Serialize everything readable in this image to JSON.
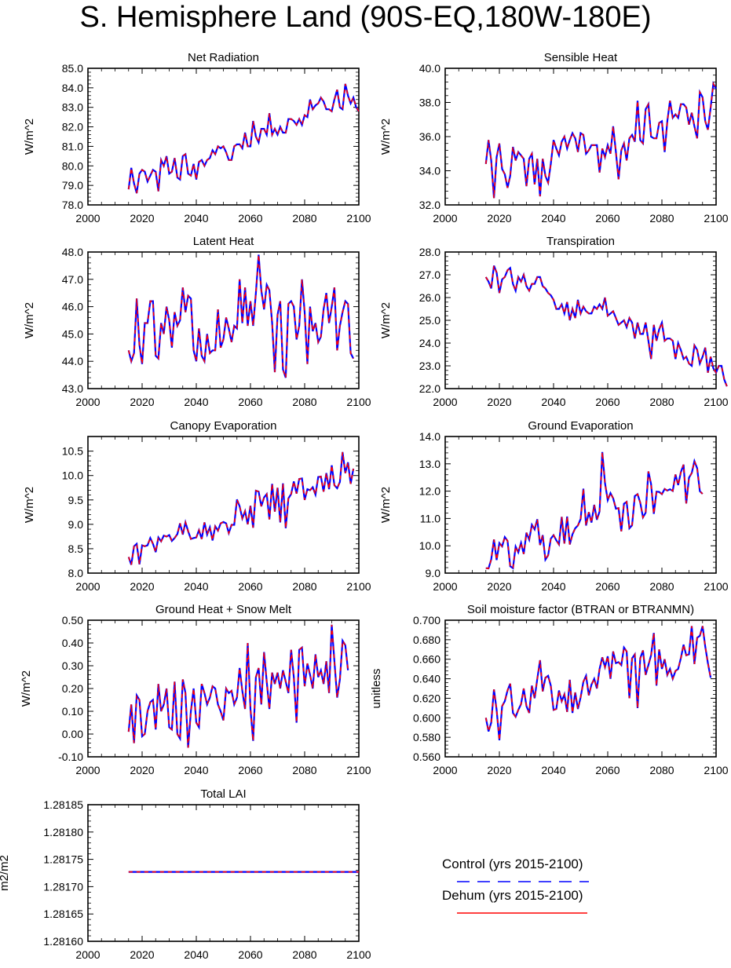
{
  "title": "S. Hemisphere Land (90S-EQ,180W-180E)",
  "legend": [
    {
      "label": "Control (yrs 2015-2100)",
      "color": "#0000ff",
      "dash": true
    },
    {
      "label": "Dehum (yrs 2015-2100)",
      "color": "#ff0000",
      "dash": false
    }
  ],
  "chart_data": [
    {
      "type": "line",
      "title": "Net Radiation",
      "ylabel": "W/m^2",
      "xlim": [
        2000,
        2100
      ],
      "ylim": [
        78,
        85
      ],
      "yticks": [
        "78.0",
        "79.0",
        "80.0",
        "81.0",
        "82.0",
        "83.0",
        "84.0",
        "85.0"
      ],
      "ytick_values": [
        78,
        79,
        80,
        81,
        82,
        83,
        84,
        85
      ],
      "xticks": [
        "2000",
        "2020",
        "2040",
        "2060",
        "2080",
        "2100"
      ],
      "x_start": 2015,
      "values": [
        78.8,
        79.9,
        79.1,
        78.6,
        79.6,
        79.8,
        79.7,
        79.2,
        79.5,
        79.8,
        79.7,
        78.7,
        80.3,
        80.0,
        80.5,
        79.6,
        79.7,
        80.4,
        79.4,
        79.3,
        80.5,
        80.6,
        79.6,
        79.5,
        80.1,
        79.3,
        80.2,
        80.3,
        80.0,
        80.3,
        80.4,
        80.8,
        80.6,
        81.0,
        80.9,
        81.0,
        80.7,
        80.3,
        80.3,
        81.0,
        81.1,
        81.1,
        80.9,
        81.7,
        81.0,
        81.0,
        82.3,
        81.5,
        81.2,
        81.9,
        81.9,
        81.6,
        82.7,
        81.6,
        81.9,
        81.6,
        82.0,
        81.7,
        81.7,
        82.4,
        82.4,
        82.3,
        82.1,
        82.4,
        82.1,
        82.6,
        82.5,
        83.4,
        82.9,
        83.1,
        83.2,
        83.5,
        83.3,
        82.9,
        82.9,
        82.8,
        83.4,
        83.9,
        83.0,
        82.9,
        84.2,
        83.6,
        83.2,
        83.5,
        83.0,
        82.8
      ]
    },
    {
      "type": "line",
      "title": "Sensible Heat",
      "ylabel": "W/m^2",
      "xlim": [
        2000,
        2100
      ],
      "ylim": [
        32,
        40
      ],
      "yticks": [
        "32.0",
        "34.0",
        "36.0",
        "38.0",
        "40.0"
      ],
      "ytick_values": [
        32,
        34,
        36,
        38,
        40
      ],
      "xticks": [
        "2000",
        "2020",
        "2040",
        "2060",
        "2080",
        "2100"
      ],
      "x_start": 2015,
      "values": [
        34.4,
        35.8,
        34.6,
        32.4,
        34.8,
        35.6,
        34.1,
        33.8,
        33.0,
        33.7,
        35.4,
        34.6,
        35.1,
        34.9,
        34.7,
        33.1,
        34.7,
        35.0,
        33.2,
        34.7,
        32.5,
        34.7,
        33.7,
        33.3,
        34.4,
        35.8,
        35.3,
        34.9,
        35.7,
        36.0,
        35.3,
        35.8,
        36.2,
        35.9,
        35.1,
        36.2,
        36.1,
        35.0,
        35.2,
        35.5,
        35.5,
        35.5,
        33.9,
        35.3,
        34.8,
        35.5,
        35.0,
        36.6,
        35.1,
        33.5,
        35.2,
        35.6,
        34.6,
        35.9,
        36.1,
        35.7,
        38.1,
        35.8,
        35.6,
        37.6,
        37.9,
        36.0,
        35.9,
        35.9,
        36.8,
        36.9,
        35.1,
        36.9,
        38.1,
        37.1,
        37.3,
        37.1,
        37.9,
        37.9,
        37.7,
        36.7,
        37.4,
        36.6,
        35.9,
        38.6,
        38.3,
        36.9,
        36.4,
        37.7,
        39.1,
        38.8
      ]
    },
    {
      "type": "line",
      "title": "Latent Heat",
      "ylabel": "W/m^2",
      "xlim": [
        2000,
        2100
      ],
      "ylim": [
        43,
        48
      ],
      "yticks": [
        "43.0",
        "44.0",
        "45.0",
        "46.0",
        "47.0",
        "48.0"
      ],
      "ytick_values": [
        43,
        44,
        45,
        46,
        47,
        48
      ],
      "xticks": [
        "2000",
        "2020",
        "2040",
        "2060",
        "2080",
        "2100"
      ],
      "x_start": 2015,
      "values": [
        44.4,
        44.0,
        44.3,
        46.3,
        44.6,
        43.9,
        45.4,
        45.4,
        46.2,
        46.2,
        44.2,
        44.1,
        45.4,
        45.0,
        46.0,
        45.5,
        44.5,
        45.8,
        45.3,
        45.5,
        46.7,
        45.8,
        46.4,
        46.3,
        44.4,
        44.0,
        45.2,
        44.2,
        44.0,
        45.0,
        44.3,
        44.4,
        44.4,
        45.9,
        44.5,
        44.8,
        45.6,
        45.2,
        44.7,
        45.3,
        45.2,
        47.0,
        45.4,
        46.7,
        45.3,
        46.2,
        45.3,
        46.5,
        47.9,
        46.6,
        45.9,
        46.8,
        46.6,
        45.4,
        43.6,
        45.7,
        46.2,
        43.7,
        43.4,
        46.1,
        46.2,
        46.0,
        44.8,
        45.3,
        47.0,
        45.8,
        43.9,
        46.0,
        45.1,
        45.4,
        44.7,
        44.9,
        45.9,
        46.5,
        45.4,
        46.0,
        46.7,
        44.4,
        45.3,
        45.8,
        46.2,
        46.1,
        44.3,
        44.1
      ]
    },
    {
      "type": "line",
      "title": "Transpiration",
      "ylabel": "W/m^2",
      "xlim": [
        2000,
        2100
      ],
      "ylim": [
        22,
        28
      ],
      "yticks": [
        "22.0",
        "23.0",
        "24.0",
        "25.0",
        "26.0",
        "27.0",
        "28.0"
      ],
      "ytick_values": [
        22,
        23,
        24,
        25,
        26,
        27,
        28
      ],
      "xticks": [
        "2000",
        "2020",
        "2040",
        "2060",
        "2080",
        "2100"
      ],
      "x_start": 2015,
      "values": [
        26.9,
        26.7,
        26.4,
        27.4,
        27.1,
        26.2,
        26.8,
        26.9,
        27.2,
        27.3,
        26.6,
        26.3,
        26.9,
        26.7,
        27.0,
        26.5,
        26.3,
        26.6,
        26.6,
        26.9,
        26.9,
        26.5,
        26.4,
        26.2,
        26.1,
        25.9,
        25.5,
        25.5,
        25.7,
        25.3,
        25.8,
        25.0,
        25.5,
        25.1,
        25.9,
        25.3,
        25.6,
        25.4,
        25.3,
        25.3,
        25.6,
        25.5,
        25.7,
        25.5,
        26.0,
        25.2,
        25.3,
        25.4,
        25.1,
        24.8,
        24.9,
        25.0,
        24.7,
        25.1,
        24.9,
        24.2,
        24.9,
        24.4,
        24.4,
        24.9,
        24.1,
        23.3,
        24.8,
        24.1,
        24.6,
        24.9,
        24.1,
        24.2,
        24.2,
        24.1,
        23.3,
        24.0,
        23.7,
        23.3,
        23.4,
        23.1,
        23.0,
        23.9,
        23.7,
        23.1,
        23.4,
        23.8,
        22.7,
        23.4,
        22.9,
        22.7,
        23.0,
        23.0,
        22.4,
        22.1
      ]
    },
    {
      "type": "line",
      "title": "Canopy Evaporation",
      "ylabel": "W/m^2",
      "xlim": [
        2000,
        2100
      ],
      "ylim": [
        8,
        10.8
      ],
      "yticks": [
        "8.0",
        "8.5",
        "9.0",
        "9.5",
        "10.0",
        "10.5"
      ],
      "ytick_values": [
        8,
        8.5,
        9,
        9.5,
        10,
        10.5
      ],
      "xticks": [
        "2000",
        "2020",
        "2040",
        "2060",
        "2080",
        "2100"
      ],
      "x_start": 2015,
      "values": [
        8.33,
        8.17,
        8.55,
        8.6,
        8.18,
        8.57,
        8.55,
        8.57,
        8.72,
        8.6,
        8.43,
        8.73,
        8.65,
        8.77,
        8.75,
        8.78,
        8.66,
        8.72,
        8.8,
        9.02,
        8.79,
        9.04,
        8.86,
        8.7,
        8.72,
        8.73,
        8.88,
        8.7,
        9.04,
        8.79,
        8.94,
        8.67,
        8.96,
        8.87,
        9.02,
        9.05,
        9.02,
        8.82,
        8.99,
        8.99,
        9.51,
        9.37,
        9.12,
        9.27,
        9.0,
        9.38,
        8.93,
        9.69,
        9.67,
        9.37,
        9.55,
        9.62,
        9.1,
        9.83,
        9.26,
        9.75,
        9.04,
        9.84,
        8.92,
        9.53,
        9.62,
        9.88,
        9.63,
        9.93,
        9.94,
        9.5,
        9.72,
        9.7,
        9.76,
        9.61,
        9.97,
        9.98,
        9.67,
        10.05,
        9.72,
        10.21,
        9.8,
        9.74,
        9.87,
        10.48,
        10.05,
        10.27,
        9.83,
        10.14
      ]
    },
    {
      "type": "line",
      "title": "Ground Evaporation",
      "ylabel": "W/m^2",
      "xlim": [
        2000,
        2100
      ],
      "ylim": [
        9,
        14
      ],
      "yticks": [
        "9.0",
        "10.0",
        "11.0",
        "12.0",
        "13.0",
        "14.0"
      ],
      "ytick_values": [
        9,
        10,
        11,
        12,
        13,
        14
      ],
      "xticks": [
        "2000",
        "2020",
        "2040",
        "2060",
        "2080",
        "2100"
      ],
      "x_start": 2015,
      "values": [
        9.18,
        9.17,
        9.5,
        10.23,
        9.48,
        10.1,
        9.98,
        10.32,
        10.18,
        9.25,
        9.18,
        9.97,
        9.76,
        10.11,
        9.7,
        10.48,
        10.22,
        10.77,
        10.6,
        10.97,
        10.03,
        10.39,
        9.49,
        9.65,
        10.26,
        10.39,
        10.2,
        10.05,
        11.06,
        10.08,
        11.07,
        10.05,
        10.42,
        10.64,
        10.74,
        10.98,
        12.09,
        10.74,
        11.23,
        10.85,
        11.5,
        10.95,
        11.26,
        13.43,
        12.3,
        11.67,
        11.93,
        11.74,
        11.36,
        11.38,
        10.53,
        11.54,
        11.61,
        10.64,
        10.75,
        11.82,
        11.89,
        11.58,
        11.04,
        11.21,
        12.72,
        12.26,
        11.17,
        11.98,
        11.97,
        11.89,
        12.08,
        12.02,
        12.07,
        12.01,
        12.61,
        12.22,
        12.69,
        12.97,
        11.55,
        12.49,
        12.66,
        13.1,
        12.84,
        12.0,
        11.9
      ]
    },
    {
      "type": "line",
      "title": "Ground Heat + Snow Melt",
      "ylabel": "W/m^2",
      "xlim": [
        2000,
        2100
      ],
      "ylim": [
        -0.1,
        0.5
      ],
      "yticks": [
        "-0.10",
        "0.00",
        "0.10",
        "0.20",
        "0.30",
        "0.40",
        "0.50"
      ],
      "ytick_values": [
        -0.1,
        0,
        0.1,
        0.2,
        0.3,
        0.4,
        0.5
      ],
      "xticks": [
        "2000",
        "2020",
        "2040",
        "2060",
        "2080",
        "2100"
      ],
      "x_start": 2015,
      "values": [
        0.01,
        0.13,
        -0.04,
        0.17,
        0.15,
        -0.01,
        0.0,
        0.1,
        0.14,
        0.15,
        0.02,
        0.22,
        0.1,
        0.13,
        0.2,
        0.03,
        0.02,
        0.23,
        0.0,
        -0.02,
        0.24,
        0.18,
        -0.06,
        0.1,
        0.2,
        0.05,
        0.03,
        0.22,
        0.18,
        0.13,
        0.16,
        0.21,
        0.2,
        0.13,
        0.1,
        0.06,
        0.2,
        0.18,
        0.19,
        0.13,
        0.16,
        0.29,
        0.19,
        0.11,
        0.4,
        0.11,
        -0.03,
        0.25,
        0.29,
        0.13,
        0.36,
        0.23,
        0.11,
        0.27,
        0.22,
        0.27,
        0.2,
        0.28,
        0.23,
        0.18,
        0.37,
        0.25,
        0.05,
        0.37,
        0.38,
        0.21,
        0.31,
        0.26,
        0.2,
        0.35,
        0.25,
        0.28,
        0.22,
        0.32,
        0.18,
        0.48,
        0.32,
        0.16,
        0.24,
        0.41,
        0.39,
        0.28
      ]
    },
    {
      "type": "line",
      "title": "Soil moisture factor (BTRAN or BTRANMN)",
      "ylabel": "unitless",
      "xlim": [
        2000,
        2100
      ],
      "ylim": [
        0.56,
        0.7
      ],
      "yticks": [
        "0.560",
        "0.580",
        "0.600",
        "0.620",
        "0.640",
        "0.660",
        "0.680",
        "0.700"
      ],
      "ytick_values": [
        0.56,
        0.58,
        0.6,
        0.62,
        0.64,
        0.66,
        0.68,
        0.7
      ],
      "xticks": [
        "2000",
        "2020",
        "2040",
        "2060",
        "2080",
        "2100"
      ],
      "x_start": 2015,
      "values": [
        0.6,
        0.586,
        0.595,
        0.629,
        0.608,
        0.577,
        0.612,
        0.617,
        0.628,
        0.635,
        0.605,
        0.601,
        0.608,
        0.614,
        0.63,
        0.612,
        0.605,
        0.633,
        0.62,
        0.64,
        0.659,
        0.627,
        0.641,
        0.643,
        0.633,
        0.608,
        0.609,
        0.628,
        0.617,
        0.624,
        0.606,
        0.639,
        0.605,
        0.626,
        0.609,
        0.621,
        0.637,
        0.643,
        0.623,
        0.634,
        0.64,
        0.63,
        0.65,
        0.662,
        0.652,
        0.663,
        0.64,
        0.668,
        0.656,
        0.657,
        0.654,
        0.672,
        0.668,
        0.62,
        0.661,
        0.665,
        0.61,
        0.661,
        0.669,
        0.644,
        0.654,
        0.664,
        0.687,
        0.633,
        0.67,
        0.65,
        0.66,
        0.644,
        0.65,
        0.64,
        0.648,
        0.65,
        0.661,
        0.675,
        0.664,
        0.665,
        0.694,
        0.655,
        0.682,
        0.684,
        0.694,
        0.673,
        0.656,
        0.641
      ]
    },
    {
      "type": "line",
      "title": "Total LAI",
      "ylabel": "m2/m2",
      "xlim": [
        2000,
        2100
      ],
      "ylim": [
        1.2816,
        1.28185
      ],
      "yticks": [
        "1.28160",
        "1.28165",
        "1.28170",
        "1.28175",
        "1.28180",
        "1.28185"
      ],
      "ytick_values": [
        1.2816,
        1.28165,
        1.2817,
        1.28175,
        1.2818,
        1.28185
      ],
      "xticks": [
        "2000",
        "2020",
        "2040",
        "2060",
        "2080",
        "2100"
      ],
      "x_start": 2015,
      "values": "constant",
      "constant_value": 1.281727,
      "x_end": 2100
    }
  ]
}
